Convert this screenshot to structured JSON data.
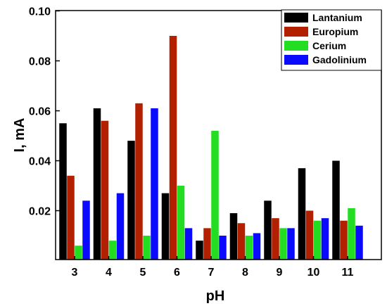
{
  "chart_data": {
    "type": "bar",
    "xlabel": "pH",
    "ylabel": "I, mA",
    "categories": [
      "3",
      "4",
      "5",
      "6",
      "7",
      "8",
      "9",
      "10",
      "11"
    ],
    "ylim": [
      0,
      0.1
    ],
    "yticks": [
      "0.02",
      "0.04",
      "0.06",
      "0.08",
      "0.10"
    ],
    "legend_position": "top-right",
    "series": [
      {
        "name": "Lantanium",
        "color": "#000000",
        "values": [
          0.055,
          0.061,
          0.048,
          0.027,
          0.008,
          0.019,
          0.024,
          0.037,
          0.04
        ]
      },
      {
        "name": "Europium",
        "color": "#b22000",
        "values": [
          0.034,
          0.056,
          0.063,
          0.09,
          0.013,
          0.015,
          0.017,
          0.02,
          0.016
        ]
      },
      {
        "name": "Cerium",
        "color": "#22dd22",
        "values": [
          0.006,
          0.008,
          0.01,
          0.03,
          0.052,
          0.01,
          0.013,
          0.016,
          0.021
        ]
      },
      {
        "name": "Gadolinium",
        "color": "#0a0aff",
        "values": [
          0.024,
          0.027,
          0.061,
          0.013,
          0.01,
          0.011,
          0.013,
          0.017,
          0.014
        ]
      }
    ]
  }
}
